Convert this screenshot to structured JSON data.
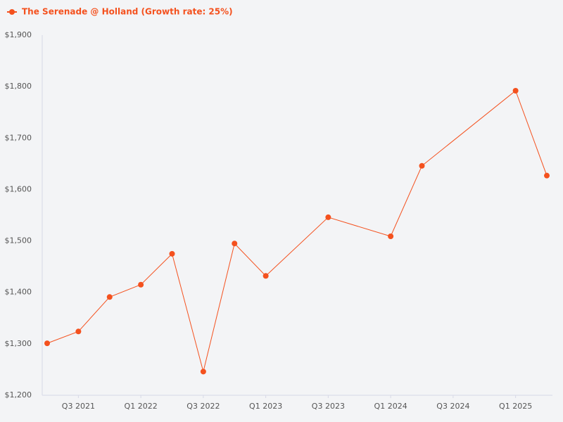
{
  "chart_data": {
    "type": "line",
    "x": [
      "Q2 2021",
      "Q3 2021",
      "Q4 2021",
      "Q1 2022",
      "Q2 2022",
      "Q3 2022",
      "Q4 2022",
      "Q1 2023",
      "Q3 2023",
      "Q1 2024",
      "Q2 2024",
      "Q1 2025",
      "Q2 2025"
    ],
    "series": [
      {
        "name": "The Serenade @ Holland (Growth rate: 25%)",
        "color": "#f4511e",
        "values": [
          1301,
          1324,
          1391,
          1415,
          1475,
          1246,
          1495,
          1432,
          1546,
          1509,
          1646,
          1792,
          1627
        ]
      }
    ],
    "xticks": [
      "Q3 2021",
      "Q1 2022",
      "Q3 2022",
      "Q1 2023",
      "Q3 2023",
      "Q1 2024",
      "Q3 2024",
      "Q1 2025"
    ],
    "ylim": [
      1200,
      1900
    ],
    "yticks": [
      {
        "value": 1200,
        "label": "$1,200"
      },
      {
        "value": 1300,
        "label": "$1,300"
      },
      {
        "value": 1400,
        "label": "$1,400"
      },
      {
        "value": 1500,
        "label": "$1,500"
      },
      {
        "value": 1600,
        "label": "$1,600"
      },
      {
        "value": 1700,
        "label": "$1,700"
      },
      {
        "value": 1800,
        "label": "$1,800"
      },
      {
        "value": 1900,
        "label": "$1,900"
      }
    ],
    "legend": "top-left"
  }
}
